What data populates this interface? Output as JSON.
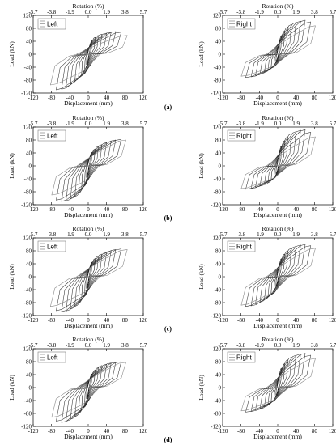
{
  "figure": {
    "captions": [
      "(a)",
      "(b)",
      "(c)",
      "(d)"
    ]
  },
  "chart_data": [
    {
      "type": "line",
      "row": 0,
      "side": "left",
      "legend": "Left",
      "xlabel": "Displacement (mm)",
      "ylabel": "Load (kN)",
      "top_label": "Rotation (%)",
      "xlim": [
        -120,
        120
      ],
      "ylim": [
        -120,
        120
      ],
      "x_ticks": [
        "-120",
        "-80",
        "-40",
        "0",
        "40",
        "80",
        "120"
      ],
      "y_ticks": [
        "-120",
        "-80",
        "-40",
        "0",
        "40",
        "80",
        "120"
      ],
      "top_ticks": [
        "-5.7",
        "-3.8",
        "-1.9",
        "0.0",
        "1.9",
        "3.8",
        "5.7"
      ],
      "series": [
        {
          "amplitudes": [
            4,
            8,
            15,
            22,
            30,
            40,
            50,
            60,
            72,
            85
          ],
          "peak_pos": [
            28,
            42,
            52,
            58,
            62,
            65,
            68,
            70,
            68,
            58
          ],
          "peak_neg": [
            -32,
            -48,
            -62,
            -72,
            -82,
            -92,
            -100,
            -108,
            -110,
            -95
          ]
        }
      ]
    },
    {
      "type": "line",
      "row": 0,
      "side": "right",
      "legend": "Right",
      "xlabel": "Displacement (mm)",
      "ylabel": "Load (kN)",
      "top_label": "Rotation (%)",
      "xlim": [
        -120,
        120
      ],
      "ylim": [
        -120,
        120
      ],
      "x_ticks": [
        "-120",
        "-80",
        "-40",
        "0",
        "40",
        "80",
        "120"
      ],
      "y_ticks": [
        "-120",
        "-80",
        "-40",
        "0",
        "40",
        "80",
        "120"
      ],
      "top_ticks": [
        "-5.7",
        "-3.8",
        "-1.9",
        "0.0",
        "1.9",
        "3.8",
        "5.7"
      ],
      "series": [
        {
          "amplitudes": [
            4,
            8,
            15,
            22,
            30,
            40,
            50,
            60,
            72,
            82
          ],
          "peak_pos": [
            38,
            58,
            72,
            84,
            92,
            98,
            102,
            105,
            100,
            88
          ],
          "peak_neg": [
            -22,
            -32,
            -42,
            -50,
            -56,
            -62,
            -66,
            -70,
            -72,
            -68
          ]
        }
      ]
    },
    {
      "type": "line",
      "row": 1,
      "side": "left",
      "legend": "Left",
      "xlabel": "Displacement (mm)",
      "ylabel": "Load (kN)",
      "top_label": "Rotation (%)",
      "xlim": [
        -120,
        120
      ],
      "ylim": [
        -120,
        120
      ],
      "x_ticks": [
        "-120",
        "-80",
        "-40",
        "0",
        "40",
        "80",
        "120"
      ],
      "y_ticks": [
        "-120",
        "-80",
        "-40",
        "0",
        "40",
        "80",
        "120"
      ],
      "top_ticks": [
        "-5.7",
        "-3.8",
        "-1.9",
        "0.0",
        "1.9",
        "3.8",
        "5.7"
      ],
      "series": [
        {
          "amplitudes": [
            4,
            8,
            15,
            22,
            30,
            40,
            50,
            60,
            72,
            82
          ],
          "peak_pos": [
            28,
            42,
            52,
            60,
            66,
            72,
            76,
            80,
            82,
            80
          ],
          "peak_neg": [
            -36,
            -55,
            -72,
            -85,
            -95,
            -102,
            -108,
            -110,
            -106,
            -90
          ]
        }
      ]
    },
    {
      "type": "line",
      "row": 1,
      "side": "right",
      "legend": "Right",
      "xlabel": "Displacement (mm)",
      "ylabel": "Load (kN)",
      "top_label": "Rotation (%)",
      "xlim": [
        -120,
        120
      ],
      "ylim": [
        -120,
        120
      ],
      "x_ticks": [
        "-120",
        "-80",
        "-40",
        "0",
        "40",
        "80",
        "120"
      ],
      "y_ticks": [
        "-120",
        "-80",
        "-40",
        "0",
        "40",
        "80",
        "120"
      ],
      "top_ticks": [
        "-5.7",
        "-3.8",
        "-1.9",
        "0.0",
        "1.9",
        "3.8",
        "5.7"
      ],
      "series": [
        {
          "amplitudes": [
            4,
            8,
            15,
            22,
            30,
            40,
            50,
            60,
            72,
            82
          ],
          "peak_pos": [
            42,
            62,
            78,
            90,
            100,
            106,
            110,
            112,
            104,
            90
          ],
          "peak_neg": [
            -24,
            -35,
            -45,
            -52,
            -58,
            -62,
            -66,
            -70,
            -72,
            -70
          ]
        }
      ]
    },
    {
      "type": "line",
      "row": 2,
      "side": "left",
      "legend": "Left",
      "xlabel": "Displacement (mm)",
      "ylabel": "Load (kN)",
      "top_label": "Rotation (%)",
      "xlim": [
        -120,
        120
      ],
      "ylim": [
        -120,
        120
      ],
      "x_ticks": [
        "-120",
        "-80",
        "-40",
        "0",
        "40",
        "80",
        "120"
      ],
      "y_ticks": [
        "-120",
        "-80",
        "-40",
        "0",
        "40",
        "80",
        "120"
      ],
      "top_ticks": [
        "-5.7",
        "-3.8",
        "-1.9",
        "0.0",
        "1.9",
        "3.8",
        "5.7"
      ],
      "series": [
        {
          "amplitudes": [
            4,
            8,
            15,
            22,
            30,
            40,
            50,
            60,
            72,
            85
          ],
          "peak_pos": [
            30,
            45,
            56,
            64,
            70,
            75,
            80,
            84,
            86,
            84
          ],
          "peak_neg": [
            -36,
            -55,
            -70,
            -82,
            -92,
            -100,
            -106,
            -108,
            -105,
            -92
          ]
        }
      ]
    },
    {
      "type": "line",
      "row": 2,
      "side": "right",
      "legend": "Right",
      "xlabel": "Displacement (mm)",
      "ylabel": "Load (kN)",
      "top_label": "Rotation (%)",
      "xlim": [
        -120,
        120
      ],
      "ylim": [
        -120,
        120
      ],
      "x_ticks": [
        "-120",
        "-80",
        "-40",
        "0",
        "40",
        "80",
        "120"
      ],
      "y_ticks": [
        "-120",
        "-80",
        "-40",
        "0",
        "40",
        "80",
        "120"
      ],
      "top_ticks": [
        "-5.7",
        "-3.8",
        "-1.9",
        "0.0",
        "1.9",
        "3.8",
        "5.7"
      ],
      "series": [
        {
          "amplitudes": [
            4,
            8,
            15,
            22,
            30,
            40,
            50,
            60,
            72,
            82
          ],
          "peak_pos": [
            38,
            56,
            70,
            80,
            88,
            94,
            98,
            100,
            96,
            88
          ],
          "peak_neg": [
            -28,
            -40,
            -52,
            -62,
            -70,
            -78,
            -84,
            -90,
            -92,
            -88
          ]
        }
      ]
    },
    {
      "type": "line",
      "row": 3,
      "side": "left",
      "legend": "Left",
      "xlabel": "Displacement (mm)",
      "ylabel": "Load (kN)",
      "top_label": "Rotation (%)",
      "xlim": [
        -120,
        120
      ],
      "ylim": [
        -120,
        120
      ],
      "x_ticks": [
        "-120",
        "-80",
        "-40",
        "0",
        "40",
        "80",
        "120"
      ],
      "y_ticks": [
        "-120",
        "-80",
        "-40",
        "0",
        "40",
        "80",
        "120"
      ],
      "top_ticks": [
        "-5.7",
        "-3.8",
        "-1.9",
        "0.0",
        "1.9",
        "3.8",
        "5.7"
      ],
      "series": [
        {
          "amplitudes": [
            4,
            8,
            15,
            22,
            30,
            40,
            50,
            60,
            72,
            82
          ],
          "peak_pos": [
            28,
            42,
            54,
            62,
            68,
            72,
            76,
            78,
            80,
            78
          ],
          "peak_neg": [
            -34,
            -52,
            -68,
            -80,
            -90,
            -98,
            -104,
            -108,
            -104,
            -92
          ]
        }
      ]
    },
    {
      "type": "line",
      "row": 3,
      "side": "right",
      "legend": "Right",
      "xlabel": "Displacement (mm)",
      "ylabel": "Load (kN)",
      "top_label": "Rotation (%)",
      "xlim": [
        -120,
        120
      ],
      "ylim": [
        -120,
        120
      ],
      "x_ticks": [
        "-120",
        "-80",
        "-40",
        "0",
        "40",
        "80",
        "120"
      ],
      "y_ticks": [
        "-120",
        "-80",
        "-40",
        "0",
        "40",
        "80",
        "120"
      ],
      "top_ticks": [
        "-5.7",
        "-3.8",
        "-1.9",
        "0.0",
        "1.9",
        "3.8",
        "5.7"
      ],
      "series": [
        {
          "amplitudes": [
            4,
            8,
            15,
            22,
            30,
            40,
            50,
            60,
            72,
            82
          ],
          "peak_pos": [
            40,
            60,
            74,
            86,
            94,
            100,
            104,
            106,
            100,
            90
          ],
          "peak_neg": [
            -24,
            -35,
            -46,
            -54,
            -60,
            -66,
            -70,
            -74,
            -76,
            -72
          ]
        }
      ]
    }
  ]
}
